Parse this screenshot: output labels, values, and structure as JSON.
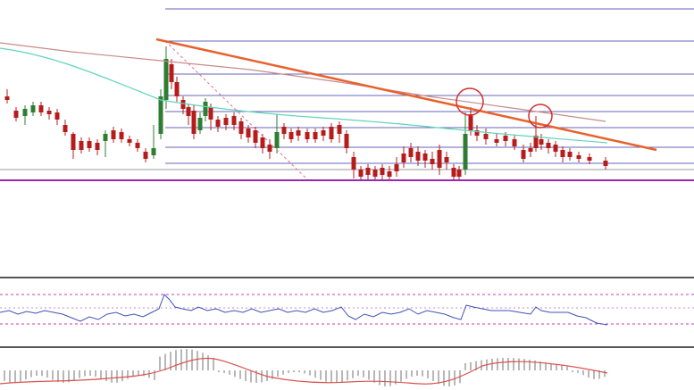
{
  "chart_data": [
    {
      "type": "candlestick",
      "panel": "price",
      "colors": {
        "up": "#2e7d32",
        "down": "#b71c1c",
        "fib_lines": "#3f3fa8",
        "support": "#9c27b0",
        "trend": "#e8612c",
        "ma_slow": "#c98a8a",
        "ma_fast": "#5fd4b8",
        "marker": "#d32f2f"
      },
      "grid": false,
      "overlays": [
        "fibonacci-levels",
        "descending-trendline",
        "slow-moving-average",
        "fast-moving-average",
        "horizontal-support",
        "rejection-markers"
      ]
    },
    {
      "type": "line",
      "panel": "oscillator",
      "colors": {
        "line": "#3f51b5",
        "levels": "#c03fc0"
      }
    },
    {
      "type": "bar",
      "panel": "histogram",
      "colors": {
        "bars": "#b8b8b8",
        "signal": "#d9534f"
      }
    }
  ]
}
